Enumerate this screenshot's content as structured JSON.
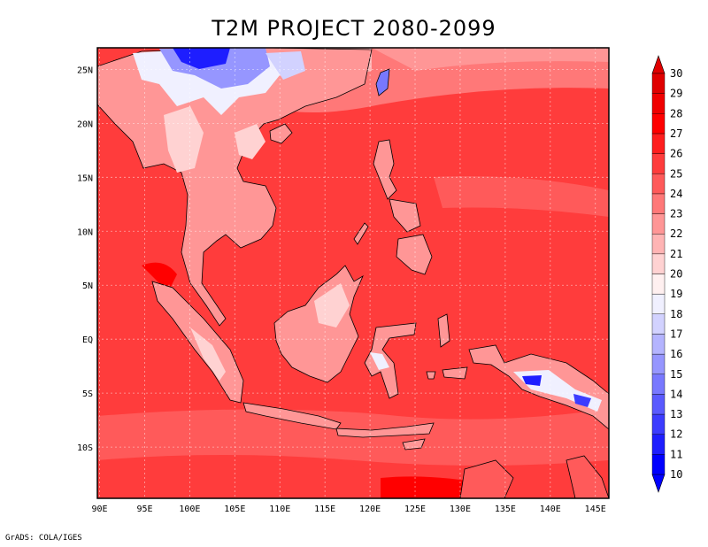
{
  "title": "T2M PROJECT 2080-2099",
  "credit": "GrADS: COLA/IGES",
  "map": {
    "x_ticks": [
      "90E",
      "95E",
      "100E",
      "105E",
      "110E",
      "115E",
      "120E",
      "125E",
      "130E",
      "135E",
      "140E",
      "145E"
    ],
    "y_ticks": [
      "25N",
      "20N",
      "15N",
      "10N",
      "5N",
      "EQ",
      "5S",
      "10S"
    ],
    "lon_range": [
      89.75,
      146.5
    ],
    "lat_range": [
      -14.75,
      27.0
    ]
  },
  "colorbar": {
    "labels": [
      "10",
      "11",
      "12",
      "13",
      "14",
      "15",
      "16",
      "17",
      "18",
      "19",
      "20",
      "21",
      "22",
      "23",
      "24",
      "25",
      "26",
      "27",
      "28",
      "29",
      "30"
    ],
    "colors": [
      "#0000ff",
      "#1e1eff",
      "#3c3cff",
      "#5a5aff",
      "#7878ff",
      "#9696ff",
      "#b4b4ff",
      "#d2d2ff",
      "#f0f0ff",
      "#fff0f0",
      "#ffd2d2",
      "#ffb4b4",
      "#ff9696",
      "#ff7878",
      "#ff5a5a",
      "#ff3c3c",
      "#ff1e1e",
      "#ff0000",
      "#f00000",
      "#e00000"
    ]
  },
  "colors": {
    "ocean": "#ff3c3c",
    "land": "#ff7878",
    "cold": "#1e1eff",
    "warm": "#ff1e1e"
  }
}
